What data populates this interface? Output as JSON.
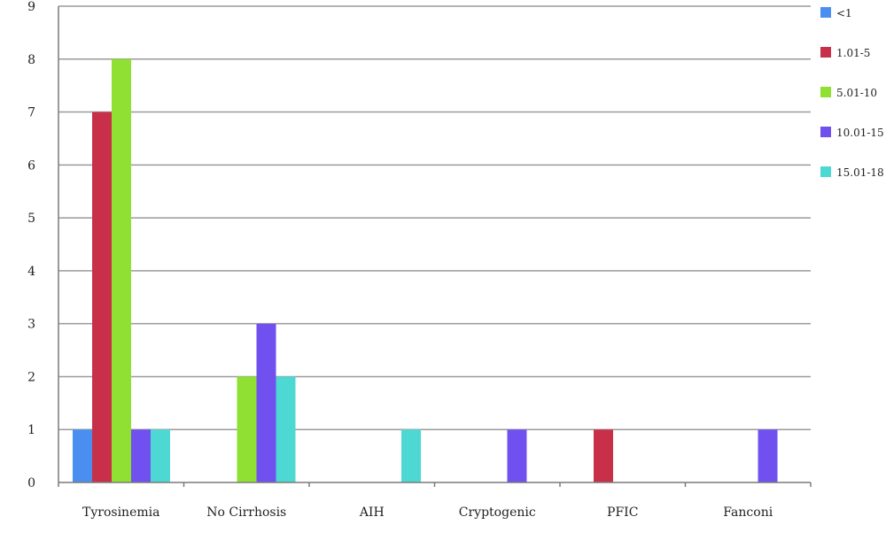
{
  "chart_data": {
    "type": "bar",
    "title": "",
    "xlabel": "",
    "ylabel": "",
    "categories": [
      "Tyrosinemia",
      "No Cirrhosis",
      "AIH",
      "Cryptogenic",
      "PFIC",
      "Fanconi"
    ],
    "series": [
      {
        "name": "<1",
        "color": "#4a8ff0",
        "values": [
          1,
          0,
          0,
          0,
          0,
          0
        ]
      },
      {
        "name": "1.01-5",
        "color": "#c8304a",
        "values": [
          7,
          0,
          0,
          0,
          1,
          0
        ]
      },
      {
        "name": "5.01-10",
        "color": "#8fe033",
        "values": [
          8,
          2,
          0,
          0,
          0,
          0
        ]
      },
      {
        "name": "10.01-15",
        "color": "#7050ee",
        "values": [
          1,
          3,
          0,
          1,
          0,
          1
        ]
      },
      {
        "name": "15.01-18",
        "color": "#4ed8d4",
        "values": [
          1,
          2,
          1,
          0,
          0,
          0
        ]
      }
    ],
    "ylim": [
      0,
      9
    ],
    "yticks": [
      "0",
      "1",
      "2",
      "3",
      "4",
      "5",
      "6",
      "7",
      "8",
      "9"
    ],
    "grid": true,
    "legend_position": "right"
  }
}
